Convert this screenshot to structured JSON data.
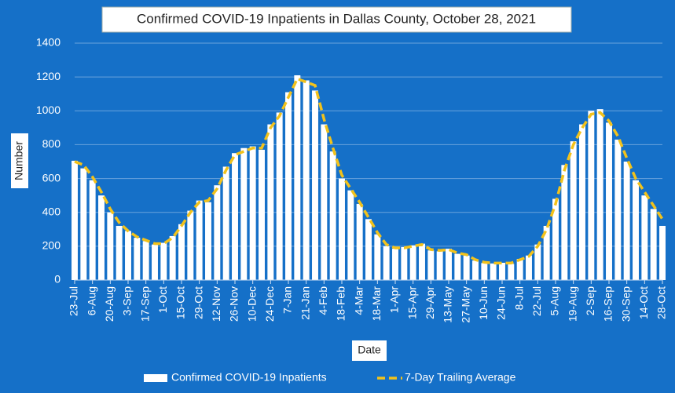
{
  "chart_data": {
    "type": "bar_line",
    "title": "Confirmed COVID-19 Inpatients in Dallas County, October 28, 2021",
    "x_label": "Date",
    "y_label": "Number",
    "categories": [
      "23-Jul",
      null,
      "6-Aug",
      null,
      "20-Aug",
      null,
      "3-Sep",
      null,
      "17-Sep",
      null,
      "1-Oct",
      null,
      "15-Oct",
      null,
      "29-Oct",
      null,
      "12-Nov",
      null,
      "26-Nov",
      null,
      "10-Dec",
      null,
      "24-Dec",
      null,
      "7-Jan",
      null,
      "21-Jan",
      null,
      "4-Feb",
      null,
      "18-Feb",
      null,
      "4-Mar",
      null,
      "18-Mar",
      null,
      "1-Apr",
      null,
      "15-Apr",
      null,
      "29-Apr",
      null,
      "13-May",
      null,
      "27-May",
      null,
      "10-Jun",
      null,
      "24-Jun",
      null,
      "8-Jul",
      null,
      "22-Jul",
      null,
      "5-Aug",
      null,
      "19-Aug",
      null,
      "2-Sep",
      null,
      "16-Sep",
      null,
      "30-Sep",
      null,
      "14-Oct",
      null,
      "28-Oct"
    ],
    "series": [
      {
        "name": "Confirmed COVID-19 Inpatients",
        "color": "#ffffff",
        "kind": "bar",
        "values": [
          705,
          660,
          590,
          500,
          400,
          320,
          290,
          250,
          230,
          210,
          220,
          260,
          330,
          410,
          470,
          460,
          560,
          670,
          750,
          780,
          790,
          770,
          920,
          990,
          1110,
          1210,
          1180,
          1120,
          920,
          760,
          600,
          530,
          450,
          360,
          270,
          200,
          185,
          195,
          205,
          215,
          175,
          170,
          185,
          155,
          145,
          115,
          100,
          98,
          102,
          95,
          125,
          145,
          210,
          320,
          480,
          680,
          820,
          920,
          1000,
          1010,
          930,
          830,
          700,
          590,
          500,
          420,
          320
        ]
      },
      {
        "name": "7-Day Trailing Average",
        "color": "#f2c21b",
        "kind": "line",
        "values": [
          700,
          680,
          610,
          520,
          420,
          340,
          290,
          255,
          235,
          215,
          215,
          250,
          320,
          400,
          460,
          470,
          540,
          650,
          740,
          760,
          780,
          780,
          900,
          970,
          1080,
          1190,
          1170,
          1150,
          950,
          780,
          620,
          540,
          460,
          370,
          280,
          210,
          190,
          190,
          200,
          210,
          180,
          175,
          180,
          160,
          150,
          120,
          105,
          100,
          100,
          100,
          120,
          140,
          200,
          300,
          450,
          650,
          800,
          900,
          980,
          990,
          940,
          850,
          720,
          600,
          520,
          440,
          360
        ]
      }
    ],
    "ylim": [
      0,
      1400
    ],
    "yticks": [
      0,
      200,
      400,
      600,
      800,
      1000,
      1200,
      1400
    ],
    "grid": true,
    "legend": "bottom"
  }
}
